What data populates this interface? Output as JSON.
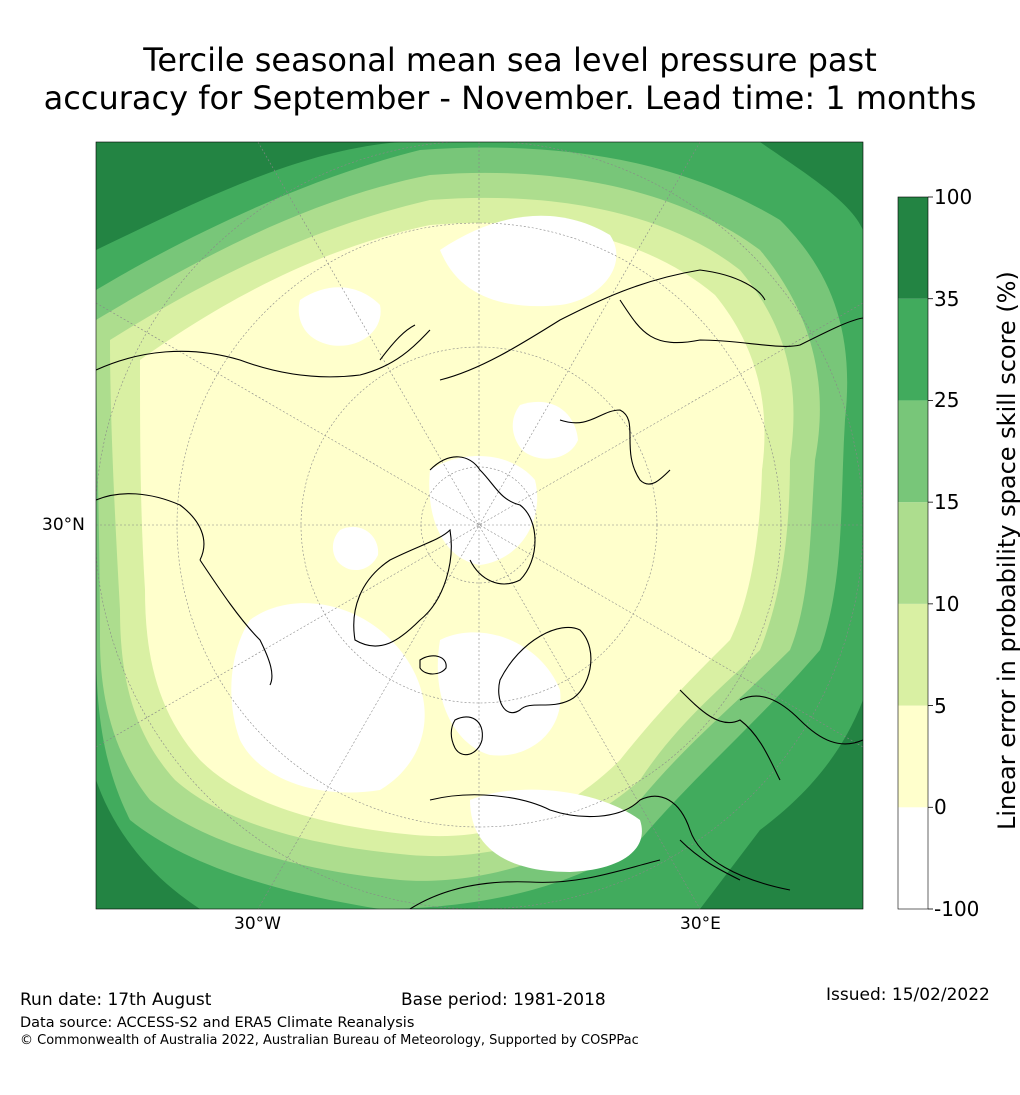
{
  "title": {
    "line1": "Tercile seasonal mean sea level pressure past",
    "line2": "accuracy for September - November. Lead time: 1 months"
  },
  "map": {
    "projection": "north-polar-stereographic",
    "axis_labels": {
      "lat_left": "30°N",
      "lon_bottom_left": "30°W",
      "lon_bottom_right": "30°E"
    }
  },
  "colorbar": {
    "label": "Linear error in probability space skill score (%)",
    "ticks": [
      "100",
      "35",
      "25",
      "15",
      "10",
      "5",
      "0",
      "-100"
    ],
    "bins": [
      {
        "range": "-100 to 0",
        "color": "#ffffff"
      },
      {
        "range": "0 to 5",
        "color": "#ffffcc"
      },
      {
        "range": "5 to 10",
        "color": "#d9f0a3"
      },
      {
        "range": "10 to 15",
        "color": "#addd8e"
      },
      {
        "range": "15 to 25",
        "color": "#78c679"
      },
      {
        "range": "25 to 35",
        "color": "#41ab5d"
      },
      {
        "range": "35 to 100",
        "color": "#238443"
      }
    ]
  },
  "footer": {
    "run_date": "Run date: 17th August",
    "base_period": "Base period: 1981-2018",
    "issued": "Issued: 15/02/2022",
    "data_source": "Data source: ACCESS-S2 and ERA5 Climate Reanalysis",
    "copyright": "© Commonwealth of Australia 2022, Australian Bureau of Meteorology, Supported by COSPPac"
  }
}
